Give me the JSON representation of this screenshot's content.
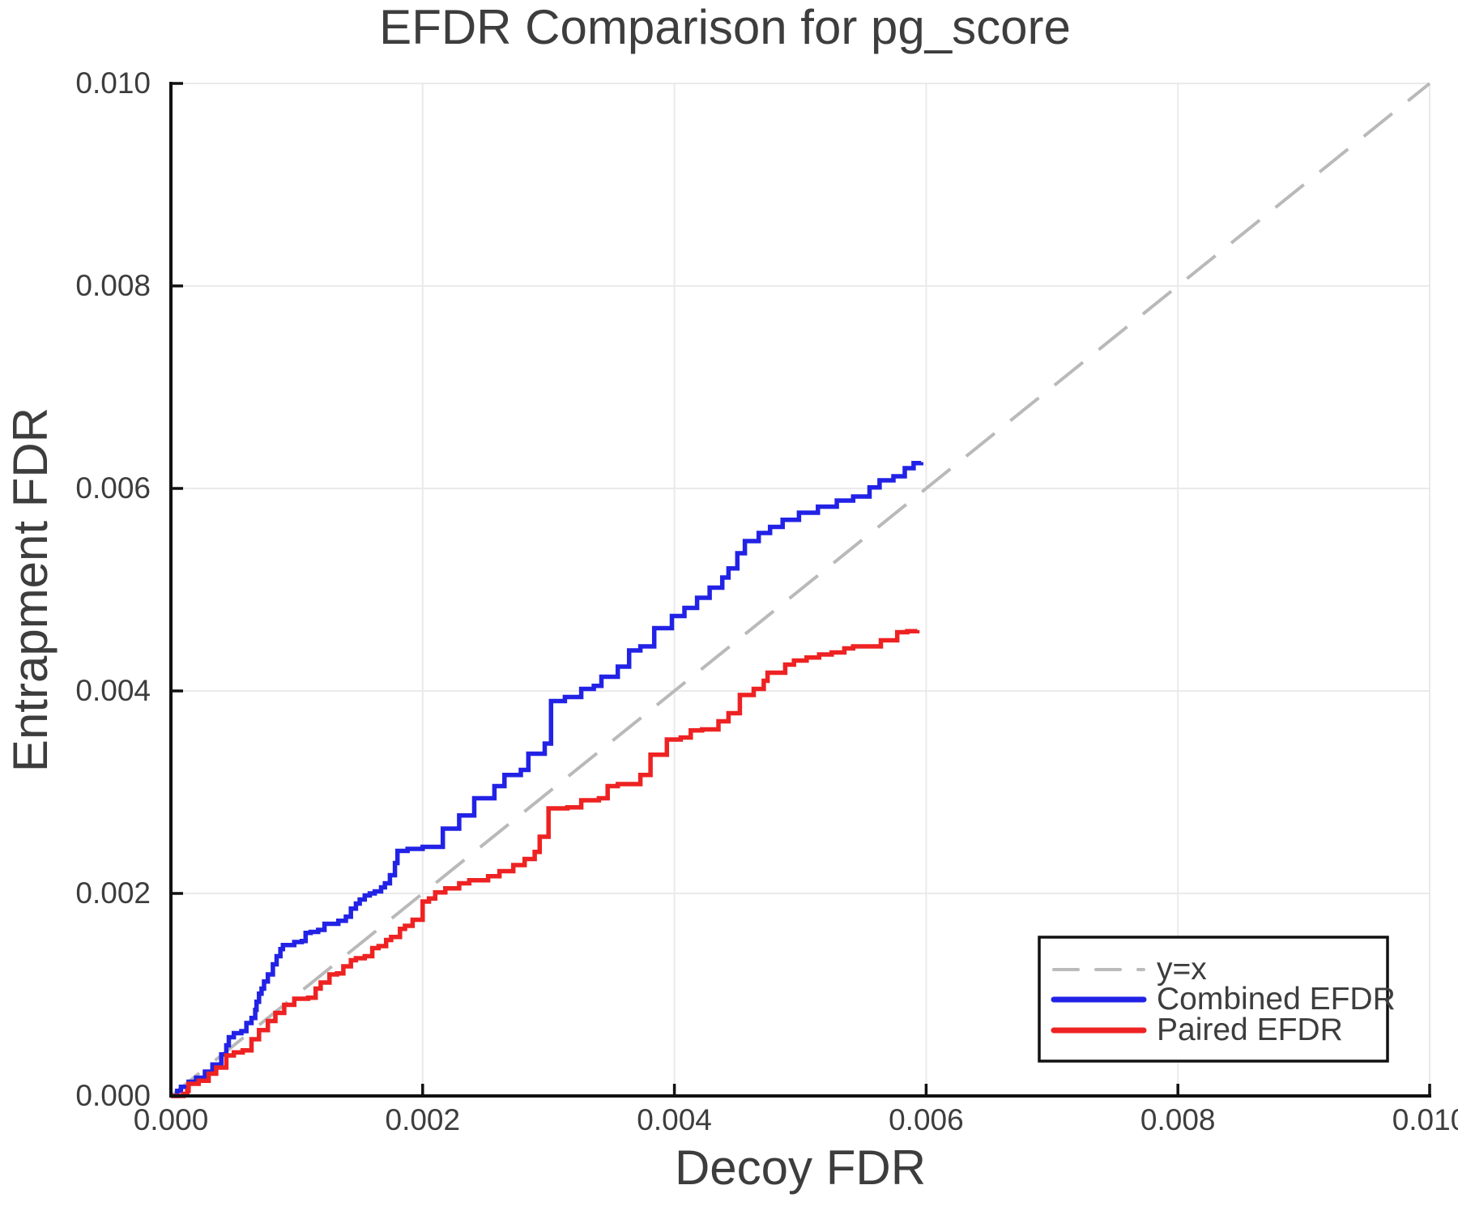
{
  "figure": {
    "title": "EFDR Comparison for pg_score",
    "xlabel": "Decoy FDR",
    "ylabel": "Entrapment FDR"
  },
  "axes": {
    "x_tick_labels": [
      "0.000",
      "0.002",
      "0.004",
      "0.006",
      "0.008",
      "0.010"
    ],
    "y_tick_labels": [
      "0.000",
      "0.002",
      "0.004",
      "0.006",
      "0.008",
      "0.010"
    ],
    "x_range": [
      0,
      0.01
    ],
    "y_range": [
      0,
      0.01
    ],
    "grid": true,
    "grid_color": "#eaeaea",
    "spine_color": "#111111",
    "text_color": "#3d3d3d"
  },
  "legend": {
    "position": "lower right",
    "entries": [
      {
        "label": "y=x",
        "color": "#bbbbbb",
        "dashed": true
      },
      {
        "label": "Combined EFDR",
        "color": "#2222e6",
        "dashed": false
      },
      {
        "label": "Paired EFDR",
        "color": "#ee2222",
        "dashed": false
      }
    ]
  },
  "chart_data": {
    "type": "line",
    "title": "EFDR Comparison for pg_score",
    "xlabel": "Decoy FDR",
    "ylabel": "Entrapment FDR",
    "xlim": [
      0,
      0.01
    ],
    "ylim": [
      0,
      0.01
    ],
    "grid": true,
    "legend_position": "lower right",
    "series": [
      {
        "name": "y=x",
        "style": "dashed",
        "step": false,
        "color": "#b9b9b9",
        "points": [
          [
            0,
            0
          ],
          [
            0.01,
            0.01
          ]
        ]
      },
      {
        "name": "Combined EFDR",
        "style": "solid",
        "step": true,
        "color": "#2222e6",
        "points": [
          [
            0.0,
            0.0
          ],
          [
            5e-05,
            5e-05
          ],
          [
            8e-05,
            9e-05
          ],
          [
            0.00014,
            0.00014
          ],
          [
            0.0002,
            0.00018
          ],
          [
            0.00027,
            0.00024
          ],
          [
            0.00033,
            0.00031
          ],
          [
            0.0004,
            0.00041
          ],
          [
            0.00044,
            0.0005
          ],
          [
            0.00046,
            0.00058
          ],
          [
            0.0005,
            0.00062
          ],
          [
            0.00056,
            0.00064
          ],
          [
            0.0006,
            0.00072
          ],
          [
            0.00064,
            0.00077
          ],
          [
            0.00067,
            0.00085
          ],
          [
            0.00068,
            0.00093
          ],
          [
            0.0007,
            0.00101
          ],
          [
            0.00072,
            0.00106
          ],
          [
            0.00074,
            0.00113
          ],
          [
            0.00077,
            0.0012
          ],
          [
            0.00081,
            0.0013
          ],
          [
            0.00084,
            0.00138
          ],
          [
            0.00087,
            0.00145
          ],
          [
            0.00089,
            0.00149
          ],
          [
            0.00098,
            0.00152
          ],
          [
            0.00104,
            0.00153
          ],
          [
            0.00107,
            0.00161
          ],
          [
            0.00111,
            0.00162
          ],
          [
            0.00117,
            0.00164
          ],
          [
            0.00122,
            0.0017
          ],
          [
            0.00133,
            0.00173
          ],
          [
            0.00139,
            0.00177
          ],
          [
            0.00143,
            0.00185
          ],
          [
            0.00147,
            0.0019
          ],
          [
            0.0015,
            0.00194
          ],
          [
            0.00154,
            0.00198
          ],
          [
            0.00158,
            0.002
          ],
          [
            0.00162,
            0.00202
          ],
          [
            0.00167,
            0.00206
          ],
          [
            0.0017,
            0.0021
          ],
          [
            0.00174,
            0.00218
          ],
          [
            0.00178,
            0.0023
          ],
          [
            0.0018,
            0.00242
          ],
          [
            0.00188,
            0.00244
          ],
          [
            0.002,
            0.00246
          ],
          [
            0.00216,
            0.00264
          ],
          [
            0.00229,
            0.00277
          ],
          [
            0.00241,
            0.00294
          ],
          [
            0.00257,
            0.00306
          ],
          [
            0.00265,
            0.00317
          ],
          [
            0.00278,
            0.00322
          ],
          [
            0.00284,
            0.00338
          ],
          [
            0.00297,
            0.00348
          ],
          [
            0.00302,
            0.0039
          ],
          [
            0.00313,
            0.00394
          ],
          [
            0.00326,
            0.00402
          ],
          [
            0.00336,
            0.00405
          ],
          [
            0.00342,
            0.00414
          ],
          [
            0.00355,
            0.00424
          ],
          [
            0.00364,
            0.0044
          ],
          [
            0.00373,
            0.00444
          ],
          [
            0.00384,
            0.00462
          ],
          [
            0.00398,
            0.00474
          ],
          [
            0.00408,
            0.00482
          ],
          [
            0.00418,
            0.00492
          ],
          [
            0.00428,
            0.00502
          ],
          [
            0.00438,
            0.00512
          ],
          [
            0.00443,
            0.00521
          ],
          [
            0.0045,
            0.00536
          ],
          [
            0.00456,
            0.00548
          ],
          [
            0.00467,
            0.00556
          ],
          [
            0.00476,
            0.00562
          ],
          [
            0.00486,
            0.00569
          ],
          [
            0.00499,
            0.00576
          ],
          [
            0.00514,
            0.00582
          ],
          [
            0.00529,
            0.00588
          ],
          [
            0.00542,
            0.00592
          ],
          [
            0.00555,
            0.00601
          ],
          [
            0.00563,
            0.00608
          ],
          [
            0.00574,
            0.00612
          ],
          [
            0.00583,
            0.0062
          ],
          [
            0.0059,
            0.00625
          ],
          [
            0.00596,
            0.00626
          ]
        ]
      },
      {
        "name": "Paired EFDR",
        "style": "solid",
        "step": true,
        "color": "#ee2222",
        "points": [
          [
            0.0,
            0.0
          ],
          [
            0.0001,
            2e-05
          ],
          [
            0.00013,
            5e-05
          ],
          [
            0.00014,
            0.00012
          ],
          [
            0.00022,
            0.00015
          ],
          [
            0.0003,
            0.00022
          ],
          [
            0.00036,
            0.00028
          ],
          [
            0.00044,
            0.0004
          ],
          [
            0.0005,
            0.00043
          ],
          [
            0.00057,
            0.00045
          ],
          [
            0.00064,
            0.00056
          ],
          [
            0.0007,
            0.00065
          ],
          [
            0.00077,
            0.00074
          ],
          [
            0.00083,
            0.00082
          ],
          [
            0.0009,
            0.0009
          ],
          [
            0.00098,
            0.00096
          ],
          [
            0.00109,
            0.00097
          ],
          [
            0.00115,
            0.00106
          ],
          [
            0.00119,
            0.00112
          ],
          [
            0.00126,
            0.0012
          ],
          [
            0.00132,
            0.00121
          ],
          [
            0.00137,
            0.00128
          ],
          [
            0.00143,
            0.00134
          ],
          [
            0.00147,
            0.00136
          ],
          [
            0.00154,
            0.00138
          ],
          [
            0.0016,
            0.00146
          ],
          [
            0.00165,
            0.00148
          ],
          [
            0.00171,
            0.00154
          ],
          [
            0.00175,
            0.00157
          ],
          [
            0.00182,
            0.00165
          ],
          [
            0.00186,
            0.00168
          ],
          [
            0.00192,
            0.00174
          ],
          [
            0.002,
            0.00192
          ],
          [
            0.00205,
            0.00195
          ],
          [
            0.0021,
            0.00201
          ],
          [
            0.00218,
            0.00205
          ],
          [
            0.00229,
            0.0021
          ],
          [
            0.00237,
            0.00213
          ],
          [
            0.00252,
            0.00217
          ],
          [
            0.00261,
            0.00222
          ],
          [
            0.00272,
            0.00228
          ],
          [
            0.00281,
            0.00234
          ],
          [
            0.00289,
            0.00241
          ],
          [
            0.00293,
            0.00256
          ],
          [
            0.003,
            0.00284
          ],
          [
            0.00315,
            0.00285
          ],
          [
            0.00326,
            0.00292
          ],
          [
            0.0034,
            0.00294
          ],
          [
            0.00347,
            0.00306
          ],
          [
            0.00355,
            0.00308
          ],
          [
            0.00373,
            0.00317
          ],
          [
            0.00381,
            0.00337
          ],
          [
            0.00394,
            0.00352
          ],
          [
            0.00405,
            0.00354
          ],
          [
            0.00413,
            0.00361
          ],
          [
            0.00422,
            0.00362
          ],
          [
            0.00435,
            0.0037
          ],
          [
            0.00443,
            0.00378
          ],
          [
            0.00452,
            0.00396
          ],
          [
            0.00463,
            0.00402
          ],
          [
            0.00471,
            0.0041
          ],
          [
            0.00474,
            0.00418
          ],
          [
            0.00488,
            0.00426
          ],
          [
            0.00495,
            0.0043
          ],
          [
            0.00505,
            0.00433
          ],
          [
            0.00515,
            0.00436
          ],
          [
            0.00525,
            0.00438
          ],
          [
            0.00535,
            0.00442
          ],
          [
            0.00542,
            0.00444
          ],
          [
            0.00564,
            0.0045
          ],
          [
            0.00577,
            0.00458
          ],
          [
            0.00585,
            0.00459
          ],
          [
            0.00593,
            0.0046
          ]
        ]
      }
    ]
  }
}
